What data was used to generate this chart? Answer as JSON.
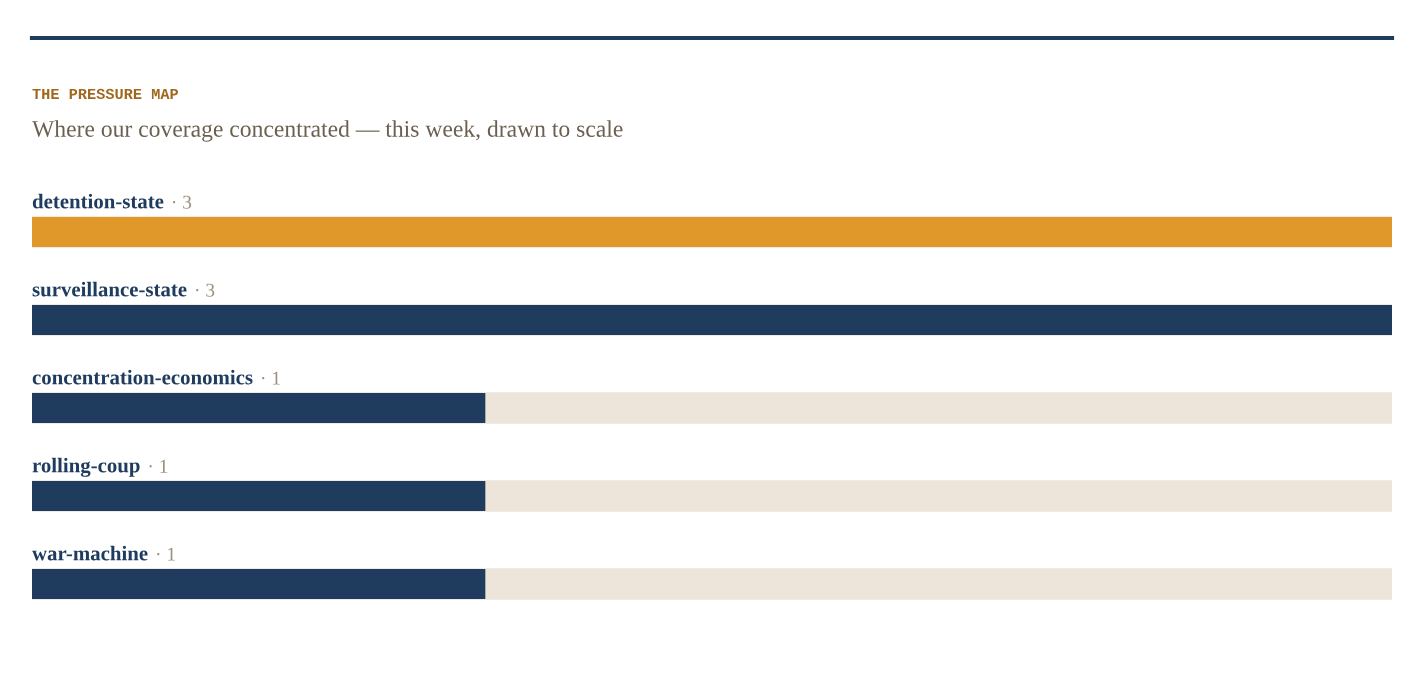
{
  "chart_data": {
    "type": "bar",
    "orientation": "horizontal",
    "title": "THE PRESSURE MAP",
    "subtitle": "Where our coverage concentrated — this week, drawn to scale",
    "categories": [
      "detention-state",
      "surveillance-state",
      "concentration-economics",
      "rolling-coup",
      "war-machine"
    ],
    "values": [
      3,
      3,
      1,
      1,
      1
    ],
    "colors": [
      "#e0982a",
      "#1f3b5e",
      "#1f3b5e",
      "#1f3b5e",
      "#1f3b5e"
    ],
    "value_labels": [
      "· 3",
      "· 3",
      "· 1",
      "· 1",
      "· 1"
    ],
    "xlim": [
      0,
      3
    ]
  }
}
